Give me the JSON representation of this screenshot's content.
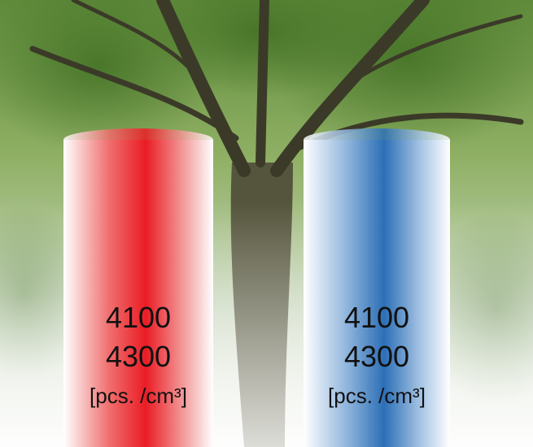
{
  "columns": [
    {
      "lines": [
        "4100",
        "4300"
      ],
      "unit": "[pcs. /cm³]"
    },
    {
      "lines": [
        "4100",
        "4300"
      ],
      "unit": "[pcs. /cm³]"
    }
  ]
}
